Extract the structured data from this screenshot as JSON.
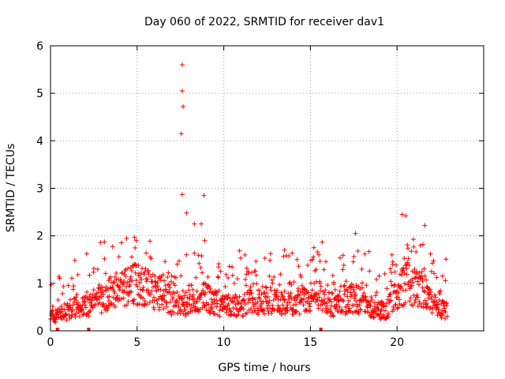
{
  "chart_data": {
    "type": "scatter",
    "title": "Day 060 of 2022, SRMTID for receiver dav1",
    "xlabel": "GPS time / hours",
    "ylabel": "SRMTID / TECUs",
    "xlim": [
      0,
      25
    ],
    "ylim": [
      0,
      6
    ],
    "x_ticks": [
      0,
      5,
      10,
      15,
      20
    ],
    "y_ticks": [
      0,
      1,
      2,
      3,
      4,
      5,
      6
    ],
    "x_tick_labels": [
      "0",
      "5",
      "10",
      "15",
      "20"
    ],
    "y_tick_labels": [
      "0",
      "1",
      "2",
      "3",
      "4",
      "5",
      "6"
    ],
    "grid": true,
    "marker": "+",
    "color": "#ff0000",
    "series": [
      {
        "name": "SRMTID",
        "note": "approximate envelope of the dense point cloud",
        "x_range": [
          0,
          22.9
        ],
        "baseline_profile": [
          [
            0,
            0.3
          ],
          [
            0.5,
            0.35
          ],
          [
            1,
            0.4
          ],
          [
            1.5,
            0.5
          ],
          [
            2,
            0.5
          ],
          [
            2.5,
            0.6
          ],
          [
            3,
            0.7
          ],
          [
            3.5,
            0.8
          ],
          [
            4,
            0.9
          ],
          [
            4.5,
            1.0
          ],
          [
            5,
            1.0
          ],
          [
            5.5,
            0.9
          ],
          [
            6,
            0.8
          ],
          [
            6.5,
            0.8
          ],
          [
            7,
            0.6
          ],
          [
            7.5,
            0.5
          ],
          [
            8,
            0.6
          ],
          [
            8.5,
            0.7
          ],
          [
            9,
            0.7
          ],
          [
            9.5,
            0.6
          ],
          [
            10,
            0.5
          ],
          [
            10.5,
            0.55
          ],
          [
            11,
            0.5
          ],
          [
            11.5,
            0.6
          ],
          [
            12,
            0.6
          ],
          [
            12.5,
            0.65
          ],
          [
            13,
            0.6
          ],
          [
            13.5,
            0.6
          ],
          [
            14,
            0.55
          ],
          [
            14.5,
            0.6
          ],
          [
            15,
            0.7
          ],
          [
            15.5,
            0.75
          ],
          [
            16,
            0.6
          ],
          [
            16.5,
            0.5
          ],
          [
            17,
            0.6
          ],
          [
            17.5,
            0.7
          ],
          [
            18,
            0.6
          ],
          [
            18.5,
            0.5
          ],
          [
            19,
            0.4
          ],
          [
            19.5,
            0.5
          ],
          [
            20,
            0.8
          ],
          [
            20.5,
            1.0
          ],
          [
            21,
            0.9
          ],
          [
            21.5,
            0.9
          ],
          [
            22,
            0.6
          ],
          [
            22.5,
            0.45
          ],
          [
            22.9,
            0.4
          ]
        ],
        "spikes": [
          {
            "x": 7.6,
            "y": 5.6
          },
          {
            "x": 7.6,
            "y": 5.05
          },
          {
            "x": 7.65,
            "y": 4.72
          },
          {
            "x": 7.55,
            "y": 4.15
          },
          {
            "x": 7.6,
            "y": 2.87
          },
          {
            "x": 8.85,
            "y": 2.85
          },
          {
            "x": 7.85,
            "y": 2.48
          },
          {
            "x": 8.3,
            "y": 2.25
          },
          {
            "x": 8.7,
            "y": 2.25
          },
          {
            "x": 8.9,
            "y": 1.9
          },
          {
            "x": 4.95,
            "y": 1.9
          },
          {
            "x": 17.6,
            "y": 2.05
          },
          {
            "x": 20.3,
            "y": 2.45
          },
          {
            "x": 20.5,
            "y": 2.42
          },
          {
            "x": 21.6,
            "y": 2.22
          },
          {
            "x": 15.2,
            "y": 1.75
          },
          {
            "x": 13.5,
            "y": 1.7
          }
        ]
      }
    ],
    "gap_markers_x": [
      0.4,
      2.2,
      15.6
    ]
  }
}
